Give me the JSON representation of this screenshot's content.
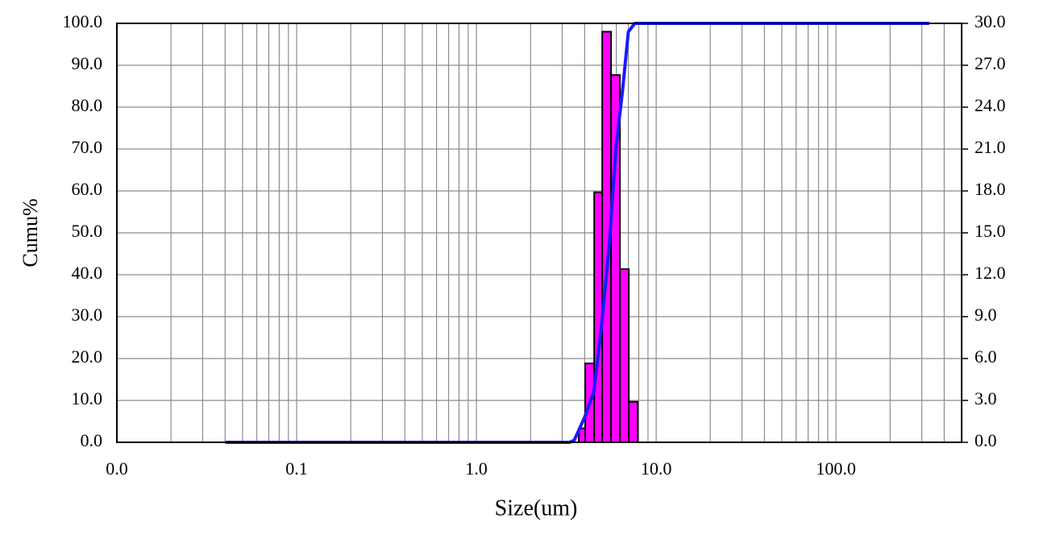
{
  "chart_data": {
    "type": "histogram",
    "xlabel": "Size(um)",
    "ylabel": "Cumu%",
    "xscale": "log",
    "xlim": [
      0.01,
      500
    ],
    "xticks": [
      {
        "value": 0.01,
        "label": "0.0"
      },
      {
        "value": 0.1,
        "label": "0.1"
      },
      {
        "value": 1,
        "label": "1.0"
      },
      {
        "value": 10,
        "label": "10.0"
      },
      {
        "value": 100,
        "label": "100.0"
      }
    ],
    "xminor": [
      0.02,
      0.03,
      0.04,
      0.05,
      0.06,
      0.07,
      0.08,
      0.09,
      0.2,
      0.3,
      0.4,
      0.5,
      0.6,
      0.7,
      0.8,
      0.9,
      2,
      3,
      4,
      5,
      6,
      7,
      8,
      9,
      20,
      30,
      40,
      50,
      60,
      70,
      80,
      90,
      200,
      300,
      400
    ],
    "ylim": [
      0,
      100
    ],
    "yticks": [
      {
        "value": 0,
        "label": "0.0"
      },
      {
        "value": 10,
        "label": "10.0"
      },
      {
        "value": 20,
        "label": "20.0"
      },
      {
        "value": 30,
        "label": "30.0"
      },
      {
        "value": 40,
        "label": "40.0"
      },
      {
        "value": 50,
        "label": "50.0"
      },
      {
        "value": 60,
        "label": "60.0"
      },
      {
        "value": 70,
        "label": "70.0"
      },
      {
        "value": 80,
        "label": "80.0"
      },
      {
        "value": 90,
        "label": "90.0"
      },
      {
        "value": 100,
        "label": "100.0"
      }
    ],
    "y2lim": [
      0,
      30
    ],
    "y2ticks": [
      {
        "value": 0,
        "label": "0.0"
      },
      {
        "value": 3,
        "label": "3.0"
      },
      {
        "value": 6,
        "label": "6.0"
      },
      {
        "value": 9,
        "label": "9.0"
      },
      {
        "value": 12,
        "label": "12.0"
      },
      {
        "value": 15,
        "label": "15.0"
      },
      {
        "value": 18,
        "label": "18.0"
      },
      {
        "value": 21,
        "label": "21.0"
      },
      {
        "value": 24,
        "label": "24.0"
      },
      {
        "value": 27,
        "label": "27.0"
      },
      {
        "value": 30,
        "label": "30.0"
      }
    ],
    "grid": true,
    "bins": [
      3.71,
      4.03,
      4.52,
      5.01,
      5.61,
      6.28,
      7.04,
      7.88
    ],
    "values": [
      1.0,
      5.65,
      17.9,
      29.4,
      26.3,
      12.4,
      2.9
    ],
    "axis": "y2",
    "color": "#ff00ff",
    "line": {
      "x": [
        0.04,
        3.3,
        3.5,
        4.0,
        4.5,
        5.0,
        5.5,
        6.0,
        6.5,
        7.0,
        7.6,
        330
      ],
      "values": [
        0,
        0,
        0.5,
        6,
        12,
        29,
        48,
        71,
        84,
        98,
        100,
        100
      ],
      "color": "#1a1aff"
    }
  }
}
